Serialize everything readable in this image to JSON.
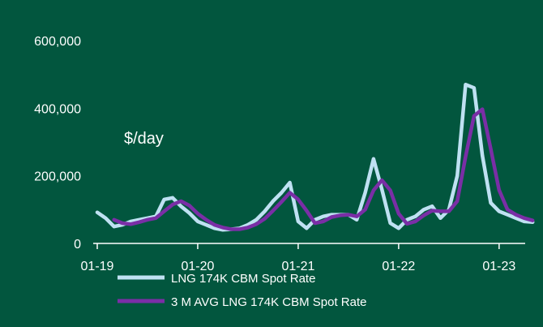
{
  "colors": {
    "background": "#02563e",
    "axis": "#ffffff",
    "text": "#ffffff"
  },
  "chart_data": {
    "type": "line",
    "title": "",
    "xlabel": "",
    "ylabel": "",
    "unit_label": "$/day",
    "ylim": [
      0,
      600000
    ],
    "yticks": [
      0,
      200000,
      400000,
      600000
    ],
    "ytick_labels": [
      "0",
      "200,000",
      "400,000",
      "600,000"
    ],
    "xlim": [
      "2019-01",
      "2023-05"
    ],
    "xticks": [
      "2019-01",
      "2020-01",
      "2021-01",
      "2022-01",
      "2023-01"
    ],
    "xtick_labels": [
      "01-19",
      "01-20",
      "01-21",
      "01-22",
      "01-23"
    ],
    "grid": false,
    "legend_position": "bottom-center",
    "x": [
      "2019-01",
      "2019-02",
      "2019-03",
      "2019-04",
      "2019-05",
      "2019-06",
      "2019-07",
      "2019-08",
      "2019-09",
      "2019-10",
      "2019-11",
      "2019-12",
      "2020-01",
      "2020-02",
      "2020-03",
      "2020-04",
      "2020-05",
      "2020-06",
      "2020-07",
      "2020-08",
      "2020-09",
      "2020-10",
      "2020-11",
      "2020-12",
      "2021-01",
      "2021-02",
      "2021-03",
      "2021-04",
      "2021-05",
      "2021-06",
      "2021-07",
      "2021-08",
      "2021-09",
      "2021-10",
      "2021-11",
      "2021-12",
      "2022-01",
      "2022-02",
      "2022-03",
      "2022-04",
      "2022-05",
      "2022-06",
      "2022-07",
      "2022-08",
      "2022-09",
      "2022-10",
      "2022-11",
      "2022-12",
      "2023-01",
      "2023-02",
      "2023-03",
      "2023-04",
      "2023-05"
    ],
    "series": [
      {
        "name": "LNG 174K CBM Spot Rate",
        "color": "#bfe1f2",
        "values": [
          92000,
          75000,
          50000,
          55000,
          65000,
          70000,
          75000,
          80000,
          130000,
          135000,
          110000,
          90000,
          65000,
          55000,
          45000,
          40000,
          42000,
          45000,
          55000,
          70000,
          95000,
          125000,
          150000,
          180000,
          65000,
          45000,
          70000,
          80000,
          85000,
          85000,
          85000,
          70000,
          150000,
          250000,
          160000,
          60000,
          45000,
          70000,
          80000,
          100000,
          110000,
          75000,
          100000,
          200000,
          470000,
          460000,
          260000,
          120000,
          95000,
          85000,
          75000,
          65000,
          63000
        ]
      },
      {
        "name": "3 M AVG LNG 174K CBM Spot Rate",
        "color": "#7a2ea6",
        "values": [
          null,
          null,
          70000,
          60000,
          57000,
          63000,
          70000,
          75000,
          95000,
          115000,
          125000,
          112000,
          88000,
          70000,
          55000,
          47000,
          42000,
          42000,
          47000,
          57000,
          73000,
          97000,
          123000,
          150000,
          130000,
          97000,
          60000,
          65000,
          78000,
          83000,
          85000,
          80000,
          100000,
          157000,
          187000,
          157000,
          88000,
          58000,
          65000,
          83000,
          97000,
          95000,
          95000,
          125000,
          257000,
          377000,
          397000,
          280000,
          158000,
          100000,
          85000,
          75000,
          68000
        ]
      }
    ]
  }
}
